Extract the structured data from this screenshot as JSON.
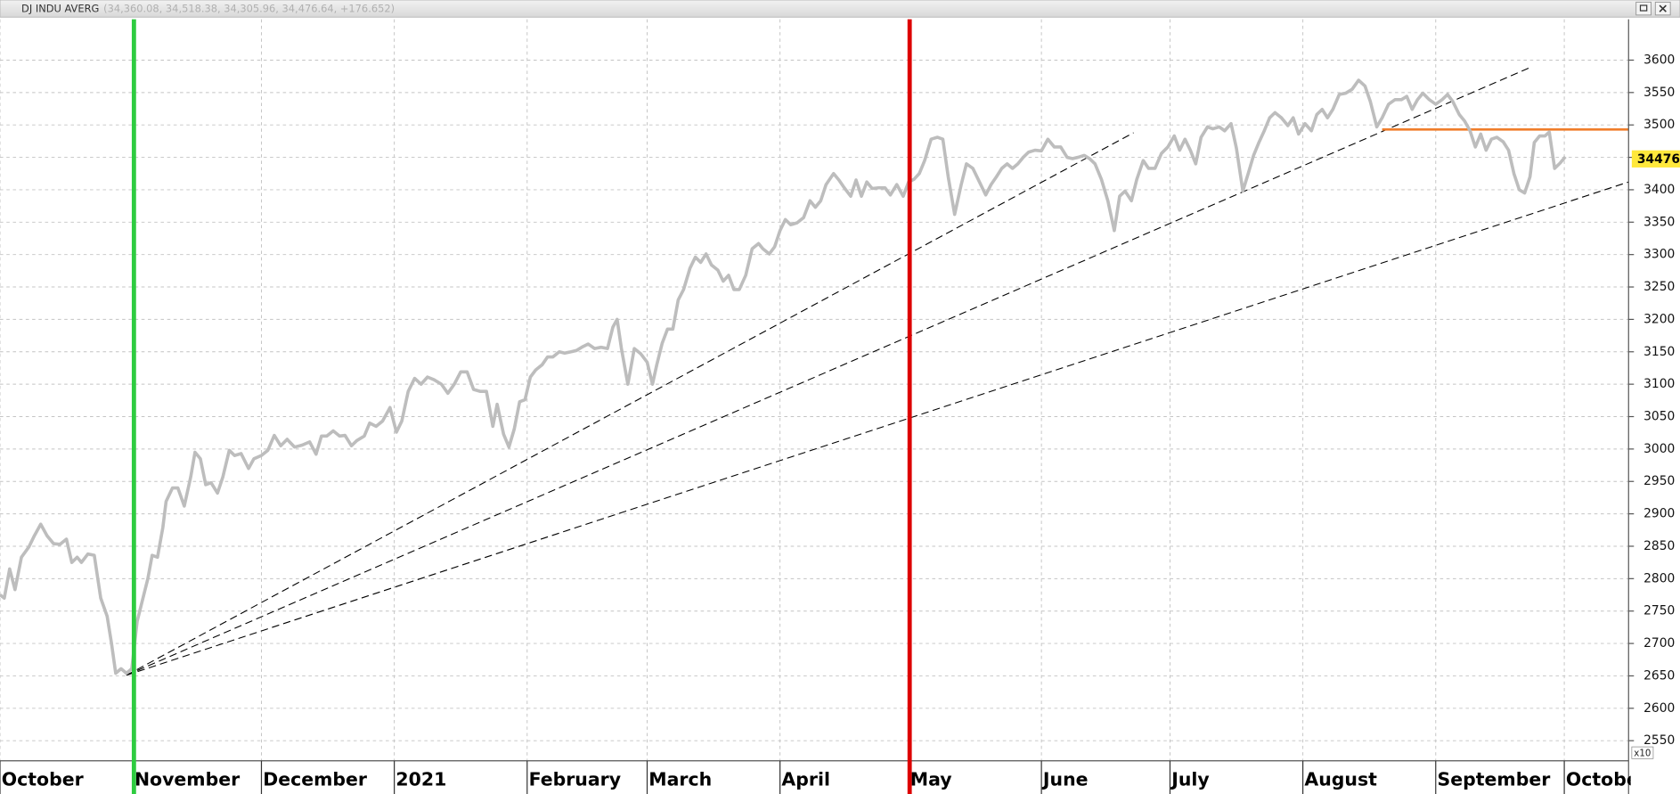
{
  "chart_data": {
    "type": "line",
    "title": "DJ INDU AVERG",
    "subtitle": "(34,360.08, 34,518.38, 34,305.96, 34,476.64, +176.652)",
    "y_multiplier": "x10",
    "color": "#bdbdbd",
    "grid": true,
    "xlim": [
      0,
      380
    ],
    "xticks": [
      {
        "value": 0,
        "label": "October"
      },
      {
        "value": 31,
        "label": "November"
      },
      {
        "value": 61,
        "label": "December"
      },
      {
        "value": 92,
        "label": "2021"
      },
      {
        "value": 123,
        "label": "February"
      },
      {
        "value": 151,
        "label": "March"
      },
      {
        "value": 182,
        "label": "April"
      },
      {
        "value": 212,
        "label": "May"
      },
      {
        "value": 243,
        "label": "June"
      },
      {
        "value": 273,
        "label": "July"
      },
      {
        "value": 304,
        "label": "August"
      },
      {
        "value": 335,
        "label": "September"
      },
      {
        "value": 365,
        "label": "October"
      }
    ],
    "ylim": [
      2519,
      3663
    ],
    "yticks": [
      2550,
      2600,
      2650,
      2700,
      2750,
      2800,
      2850,
      2900,
      2950,
      3000,
      3050,
      3100,
      3150,
      3200,
      3250,
      3300,
      3350,
      3400,
      3450,
      3500,
      3550,
      3600
    ],
    "last_value": {
      "value": 3447.6,
      "label": "34476."
    },
    "x": [
      0,
      1,
      2.25,
      3.5,
      5,
      6.75,
      8,
      9.5,
      11,
      12.5,
      14,
      15.5,
      16.75,
      18,
      19,
      20.5,
      22,
      23.5,
      25,
      26,
      27,
      28.25,
      29.5,
      30.75,
      32,
      33.25,
      34.5,
      35.5,
      36.75,
      38,
      38.75,
      40.25,
      41.5,
      43,
      44.5,
      45.5,
      46.75,
      48,
      49.25,
      50.75,
      52,
      53.5,
      54.75,
      56.25,
      58,
      59.25,
      61,
      62.5,
      64,
      65.5,
      67,
      68.75,
      70.5,
      72.25,
      73.75,
      75,
      76.25,
      77.75,
      79.25,
      80.5,
      82,
      83.25,
      85,
      86.25,
      87.75,
      89.25,
      91,
      92.5,
      93.75,
      95.25,
      96.75,
      98.25,
      99.75,
      101.25,
      103,
      104.5,
      106,
      107.5,
      109,
      110.5,
      112,
      113.5,
      115,
      116,
      117.5,
      118.75,
      120,
      121.25,
      122.5,
      123.75,
      125,
      126.5,
      127.75,
      129,
      130.5,
      131.75,
      133.25,
      134.5,
      136,
      137.25,
      138.75,
      140.25,
      141.75,
      143,
      144,
      145,
      146.5,
      148,
      149.5,
      151,
      152.25,
      153.25,
      154.5,
      155.75,
      157,
      158.25,
      159.5,
      161,
      162.25,
      163.5,
      164.75,
      166,
      167.5,
      168.75,
      170,
      171.25,
      172.5,
      174,
      175.5,
      177,
      178,
      179.5,
      180.75,
      182,
      183.25,
      184.5,
      186,
      187.5,
      189,
      190.25,
      191.5,
      192.75,
      194.5,
      195.75,
      197,
      198.5,
      199.75,
      201,
      202.25,
      203.5,
      205,
      206.5,
      207.75,
      209.25,
      210.75,
      212,
      213.25,
      214.5,
      215.75,
      217.25,
      218.75,
      220,
      221.25,
      222.75,
      224.25,
      225.5,
      227,
      228.25,
      230,
      231.25,
      232.5,
      233.75,
      235,
      236.25,
      237.5,
      238.75,
      240,
      241.5,
      243,
      244.5,
      246,
      247.5,
      249,
      250.25,
      251.5,
      253,
      254.25,
      255.5,
      257,
      258.5,
      260,
      261.25,
      262.5,
      264,
      265.25,
      266.75,
      268,
      269.5,
      271,
      272.5,
      274,
      275.25,
      276.5,
      277.75,
      279,
      280.25,
      281.75,
      283,
      284.5,
      285.75,
      287.25,
      288.5,
      290,
      291.25,
      292.5,
      293.75,
      295,
      296.25,
      297.5,
      299,
      300.5,
      301.75,
      303,
      304.5,
      306,
      307.25,
      308.5,
      309.75,
      311,
      312.5,
      314,
      315.5,
      317,
      318.5,
      319.75,
      321.25,
      322.5,
      324,
      325.5,
      327,
      328.25,
      329.5,
      330.75,
      332,
      333.5,
      335,
      336.5,
      337.75,
      339,
      340.5,
      341.75,
      343,
      344.25,
      345.5,
      346.75,
      348,
      349.25,
      350.75,
      352,
      353.25,
      354.5,
      355.75,
      357,
      358,
      359.25,
      360.5,
      361.5,
      362.75,
      364,
      365.25
    ],
    "values": [
      2775,
      2770,
      2815,
      2783,
      2833,
      2849,
      2866,
      2884,
      2866,
      2854,
      2853,
      2861,
      2825,
      2833,
      2825,
      2838,
      2836,
      2770,
      2742,
      2701,
      2654,
      2661,
      2654,
      2661,
      2734,
      2767,
      2800,
      2836,
      2833,
      2879,
      2919,
      2940,
      2940,
      2912,
      2957,
      2995,
      2985,
      2945,
      2948,
      2932,
      2957,
      2998,
      2990,
      2993,
      2970,
      2985,
      2990,
      2998,
      3021,
      3005,
      3015,
      3003,
      3006,
      3011,
      2992,
      3020,
      3020,
      3028,
      3020,
      3021,
      3005,
      3013,
      3020,
      3040,
      3035,
      3043,
      3064,
      3026,
      3043,
      3089,
      3109,
      3100,
      3111,
      3107,
      3100,
      3086,
      3100,
      3119,
      3119,
      3092,
      3089,
      3089,
      3035,
      3069,
      3023,
      3003,
      3031,
      3073,
      3076,
      3111,
      3122,
      3130,
      3142,
      3142,
      3150,
      3148,
      3150,
      3152,
      3158,
      3162,
      3155,
      3157,
      3155,
      3188,
      3200,
      3155,
      3100,
      3155,
      3147,
      3134,
      3100,
      3130,
      3163,
      3185,
      3185,
      3230,
      3246,
      3279,
      3296,
      3288,
      3301,
      3284,
      3276,
      3259,
      3268,
      3246,
      3246,
      3268,
      3309,
      3317,
      3309,
      3301,
      3312,
      3337,
      3354,
      3346,
      3349,
      3357,
      3383,
      3373,
      3383,
      3408,
      3425,
      3415,
      3403,
      3390,
      3415,
      3390,
      3412,
      3402,
      3403,
      3403,
      3392,
      3408,
      3390,
      3412,
      3416,
      3425,
      3445,
      3478,
      3481,
      3478,
      3420,
      3362,
      3407,
      3440,
      3433,
      3416,
      3392,
      3408,
      3420,
      3433,
      3440,
      3433,
      3440,
      3450,
      3458,
      3461,
      3460,
      3478,
      3466,
      3466,
      3450,
      3448,
      3450,
      3453,
      3448,
      3440,
      3416,
      3383,
      3337,
      3390,
      3398,
      3383,
      3416,
      3445,
      3433,
      3433,
      3456,
      3466,
      3483,
      3461,
      3478,
      3461,
      3440,
      3481,
      3497,
      3494,
      3497,
      3491,
      3502,
      3464,
      3398,
      3425,
      3453,
      3473,
      3491,
      3511,
      3519,
      3511,
      3499,
      3511,
      3486,
      3502,
      3491,
      3516,
      3524,
      3511,
      3524,
      3547,
      3549,
      3555,
      3569,
      3560,
      3536,
      3497,
      3511,
      3532,
      3539,
      3539,
      3544,
      3524,
      3539,
      3549,
      3539,
      3532,
      3539,
      3547,
      3536,
      3516,
      3506,
      3491,
      3466,
      3486,
      3461,
      3478,
      3481,
      3474,
      3461,
      3425,
      3400,
      3395,
      3420,
      3473,
      3483,
      3483,
      3489,
      3433,
      3441,
      3451
    ],
    "vlines": [
      {
        "x": 31.25,
        "color": "#2ecc40"
      },
      {
        "x": 212.25,
        "color": "#dd0000"
      }
    ],
    "trendlines": [
      {
        "x": [
          29.5,
          264.5
        ],
        "values": [
          2651,
          3488
        ],
        "color": "#000000",
        "style": "dashed"
      },
      {
        "x": [
          29.5,
          357.5
        ],
        "values": [
          2651,
          3590
        ],
        "color": "#000000",
        "style": "dashed"
      },
      {
        "x": [
          29.5,
          380
        ],
        "values": [
          2651,
          3412
        ],
        "color": "#000000",
        "style": "dashed"
      },
      {
        "x": [
          322.5,
          380
        ],
        "values": [
          3493,
          3493
        ],
        "color": "#f07d2a",
        "style": "solid"
      }
    ]
  }
}
